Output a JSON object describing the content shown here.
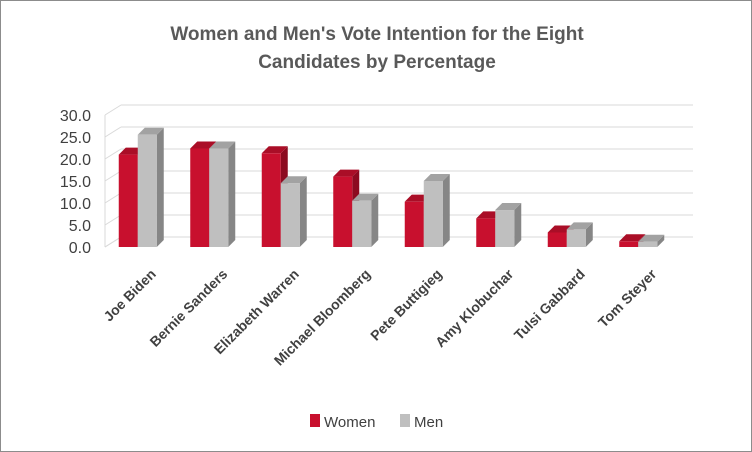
{
  "chart_data": {
    "type": "bar",
    "title_lines": [
      "Women and Men's Vote Intention for the Eight",
      "Candidates by Percentage"
    ],
    "categories": [
      "Joe Biden",
      "Bernie Sanders",
      "Elizabeth Warren",
      "Michael Bloomberg",
      "Pete Buttigieg",
      "Amy Klobuchar",
      "Tulsi Gabbard",
      "Tom Steyer"
    ],
    "series": [
      {
        "name": "Women",
        "color": "#C8102E",
        "values": [
          21.0,
          22.4,
          21.3,
          16.0,
          10.3,
          6.5,
          3.3,
          1.3
        ]
      },
      {
        "name": "Men",
        "color": "#BFBFBF",
        "values": [
          25.5,
          22.4,
          14.5,
          10.5,
          15.0,
          8.4,
          4.0,
          1.2
        ]
      }
    ],
    "ylim": [
      0,
      30
    ],
    "yticks": [
      "0.0",
      "5.0",
      "10.0",
      "15.0",
      "20.0",
      "25.0",
      "30.0"
    ],
    "grid": true,
    "legend_position": "bottom",
    "style": "3d-clustered-column"
  }
}
